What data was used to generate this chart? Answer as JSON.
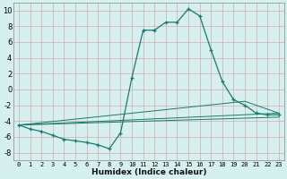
{
  "xlabel": "Humidex (Indice chaleur)",
  "xlim": [
    -0.5,
    23.5
  ],
  "ylim": [
    -9,
    11
  ],
  "yticks": [
    -8,
    -6,
    -4,
    -2,
    0,
    2,
    4,
    6,
    8,
    10
  ],
  "xticks": [
    0,
    1,
    2,
    3,
    4,
    5,
    6,
    7,
    8,
    9,
    10,
    11,
    12,
    13,
    14,
    15,
    16,
    17,
    18,
    19,
    20,
    21,
    22,
    23
  ],
  "background_color": "#d5f0ee",
  "grid_color": "#c4c4c4",
  "line_color": "#1a7a6e",
  "main_x": [
    0,
    1,
    2,
    3,
    4,
    5,
    6,
    7,
    8,
    9,
    10,
    11,
    12,
    13,
    14,
    15,
    16,
    17,
    18,
    19,
    20,
    21,
    22,
    23
  ],
  "main_y": [
    -4.5,
    -5.0,
    -5.3,
    -5.8,
    -6.3,
    -6.5,
    -6.7,
    -7.0,
    -7.5,
    -5.5,
    1.5,
    7.5,
    7.5,
    8.5,
    8.5,
    10.2,
    9.3,
    5.0,
    1.0,
    -1.3,
    -2.0,
    -3.0,
    -3.2,
    -3.2
  ],
  "line2_x": [
    0,
    23
  ],
  "line2_y": [
    -4.5,
    -3.0
  ],
  "line3_x": [
    0,
    23
  ],
  "line3_y": [
    -4.5,
    -3.5
  ],
  "line4_x": [
    0,
    20,
    23
  ],
  "line4_y": [
    -4.5,
    -1.5,
    -3.0
  ]
}
